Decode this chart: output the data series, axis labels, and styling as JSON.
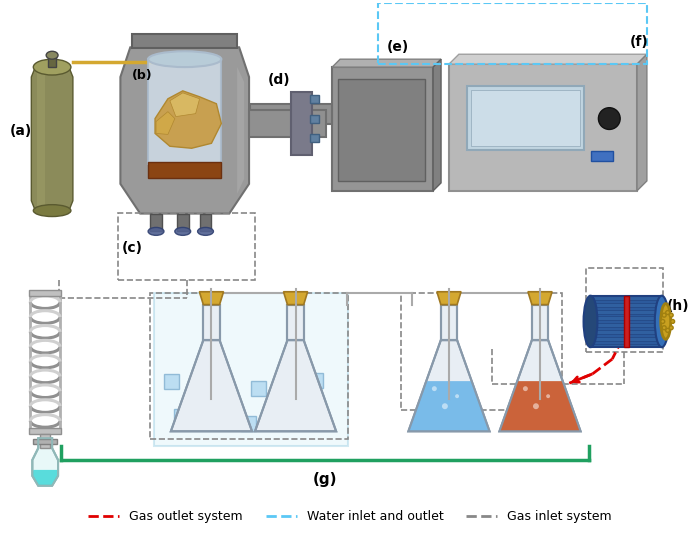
{
  "title": "",
  "background_color": "#ffffff",
  "labels": {
    "a": "(a)",
    "b": "(b)",
    "c": "(c)",
    "d": "(d)",
    "e": "(e)",
    "f": "(f)",
    "g": "(g)",
    "h": "(h)"
  },
  "legend": {
    "gas_outlet": "Gas outlet system",
    "water_io": "Water inlet and outlet",
    "gas_inlet": "Gas inlet system"
  },
  "colors": {
    "gas_outlet_line": "#e00000",
    "water_line": "#5bc8f5",
    "gas_inlet_line": "#888888",
    "cylinder_body": "#8b8b5a",
    "reactor_body": "#a0a0a0",
    "reactor_inner": "#c8d8e8",
    "biochar_color": "#c8a050",
    "flask_blue": "#6ab4e8",
    "flask_orange": "#c85020",
    "flask_empty": "#e8e8f0",
    "ice_color": "#b0d8f0",
    "cork_color": "#d4a830",
    "condenser_color": "#c0c0c0",
    "motor_body": "#3060a0",
    "motor_gold": "#c8a020",
    "green_bracket": "#20a060",
    "microwave_body": "#909090",
    "controller_body": "#b0b0b0",
    "water_box_border": "#5bc8f5",
    "tube_color": "#808090"
  }
}
